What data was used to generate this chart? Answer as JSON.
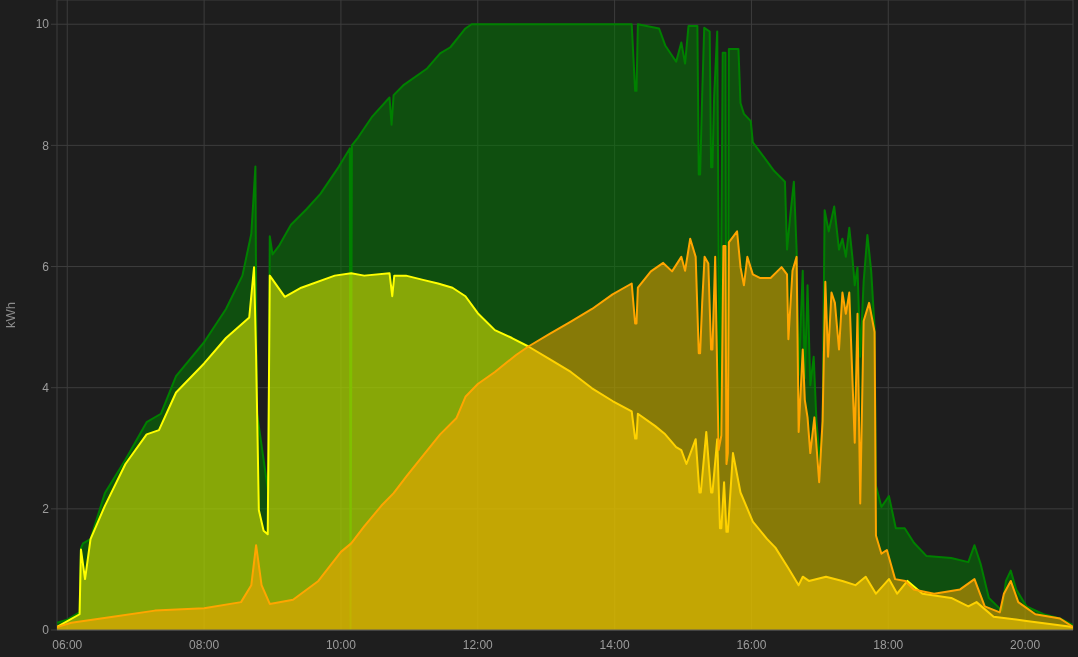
{
  "chart_data": {
    "type": "area",
    "ylabel": "kWh",
    "xlim": [
      5.85,
      20.7
    ],
    "xticks": [
      {
        "value": 6,
        "label": "06:00"
      },
      {
        "value": 8,
        "label": "08:00"
      },
      {
        "value": 10,
        "label": "10:00"
      },
      {
        "value": 12,
        "label": "12:00"
      },
      {
        "value": 14,
        "label": "14:00"
      },
      {
        "value": 16,
        "label": "16:00"
      },
      {
        "value": 18,
        "label": "18:00"
      },
      {
        "value": 20,
        "label": "20:00"
      }
    ],
    "ylim": [
      0,
      10.4
    ],
    "yticks": [
      0,
      2,
      4,
      6,
      8,
      10
    ],
    "grid": true,
    "series": [
      {
        "color": "#008000",
        "x": [
          5.85,
          6.0,
          6.18,
          6.2,
          6.23,
          6.34,
          6.55,
          6.85,
          7.16,
          7.37,
          7.59,
          8.0,
          8.32,
          8.56,
          8.69,
          8.75,
          8.77,
          8.94,
          8.96,
          9.0,
          9.1,
          9.27,
          9.5,
          9.7,
          9.97,
          10.13,
          10.14,
          10.16,
          10.25,
          10.46,
          10.71,
          10.74,
          10.77,
          10.92,
          11.26,
          11.45,
          11.6,
          11.82,
          11.91,
          14.25,
          14.3,
          14.32,
          14.34,
          14.65,
          14.74,
          14.9,
          14.975,
          15.03,
          15.08,
          15.21,
          15.23,
          15.25,
          15.28,
          15.31,
          15.39,
          15.41,
          15.43,
          15.455,
          15.5,
          15.52,
          15.54,
          15.56,
          15.58,
          15.62,
          15.635,
          15.655,
          15.67,
          15.81,
          15.84,
          15.89,
          15.99,
          16.02,
          16.18,
          16.33,
          16.49,
          16.52,
          16.57,
          16.62,
          16.66,
          16.69,
          16.75,
          16.78,
          16.82,
          16.86,
          16.91,
          16.95,
          17.0,
          17.04,
          17.07,
          17.13,
          17.21,
          17.28,
          17.33,
          17.38,
          17.43,
          17.475,
          17.51,
          17.55,
          17.59,
          17.64,
          17.695,
          17.75,
          17.8,
          17.82,
          17.9,
          18.01,
          18.11,
          18.24,
          18.375,
          18.56,
          18.92,
          19.17,
          19.26,
          19.35,
          19.47,
          19.66,
          19.72,
          19.79,
          19.87,
          20.02,
          20.27,
          20.51,
          20.7
        ],
        "values": [
          0.12,
          0.17,
          0.29,
          1.35,
          1.43,
          1.5,
          2.26,
          2.81,
          3.43,
          3.57,
          4.19,
          4.75,
          5.3,
          5.85,
          6.54,
          7.65,
          3.6,
          2.26,
          6.5,
          6.2,
          6.35,
          6.69,
          6.95,
          7.2,
          7.65,
          7.95,
          0,
          8.0,
          8.13,
          8.48,
          8.79,
          8.34,
          8.83,
          9.0,
          9.27,
          9.52,
          9.62,
          9.93,
          10.0,
          10.0,
          8.9,
          8.9,
          10.0,
          9.93,
          9.65,
          9.38,
          9.7,
          9.35,
          9.97,
          9.97,
          7.52,
          7.52,
          8.82,
          9.94,
          9.88,
          7.64,
          7.64,
          8.82,
          9.88,
          6.28,
          3.2,
          6.28,
          9.53,
          9.53,
          2.8,
          2.8,
          9.59,
          9.59,
          8.7,
          8.52,
          8.4,
          8.05,
          7.81,
          7.58,
          7.4,
          6.28,
          6.87,
          7.4,
          6.28,
          4.21,
          5.93,
          4.16,
          5.69,
          4.04,
          4.51,
          3.45,
          2.8,
          3.45,
          6.93,
          6.58,
          6.99,
          6.28,
          6.46,
          6.16,
          6.64,
          6.16,
          5.69,
          5.99,
          4.51,
          5.75,
          6.52,
          5.93,
          4.98,
          2.38,
          2.03,
          2.21,
          1.68,
          1.68,
          1.44,
          1.22,
          1.19,
          1.12,
          1.4,
          1.09,
          0.53,
          0.32,
          0.81,
          0.98,
          0.67,
          0.39,
          0.26,
          0.19,
          0.08
        ]
      },
      {
        "color": "#ffff00",
        "x": [
          5.85,
          6.18,
          6.2,
          6.26,
          6.34,
          6.55,
          6.85,
          7.16,
          7.34,
          7.59,
          8.0,
          8.32,
          8.66,
          8.73,
          8.76,
          8.8,
          8.87,
          8.93,
          8.96,
          9.18,
          9.42,
          9.91,
          10.15,
          10.34,
          10.71,
          10.75,
          10.78,
          10.95,
          11.2,
          11.42,
          11.63,
          11.82,
          12.0,
          12.25,
          12.5,
          12.74,
          13.05,
          13.36,
          13.67,
          13.97,
          14.25,
          14.3,
          14.32,
          14.34,
          14.59,
          14.74,
          14.9,
          14.975,
          15.05,
          15.185,
          15.24,
          15.26,
          15.34,
          15.41,
          15.43,
          15.5,
          15.54,
          15.56,
          15.6,
          15.635,
          15.655,
          15.73,
          15.84,
          16.02,
          16.23,
          16.35,
          16.54,
          16.69,
          16.75,
          16.84,
          17.09,
          17.33,
          17.52,
          17.67,
          17.82,
          18.01,
          18.13,
          18.28,
          18.5,
          18.92,
          19.17,
          19.29,
          19.54,
          20.02,
          20.7
        ],
        "values": [
          0.05,
          0.26,
          1.33,
          0.84,
          1.5,
          2.05,
          2.74,
          3.23,
          3.3,
          3.92,
          4.4,
          4.82,
          5.16,
          5.99,
          4.54,
          1.98,
          1.64,
          1.58,
          5.85,
          5.5,
          5.65,
          5.85,
          5.89,
          5.85,
          5.89,
          5.51,
          5.85,
          5.85,
          5.78,
          5.72,
          5.65,
          5.51,
          5.23,
          4.95,
          4.82,
          4.68,
          4.47,
          4.26,
          3.99,
          3.78,
          3.61,
          3.16,
          3.16,
          3.57,
          3.37,
          3.23,
          3.02,
          2.97,
          2.74,
          3.15,
          2.27,
          2.27,
          3.27,
          2.27,
          2.27,
          3.15,
          1.68,
          1.68,
          2.44,
          1.62,
          1.62,
          2.92,
          2.27,
          1.79,
          1.5,
          1.36,
          1.02,
          0.74,
          0.88,
          0.81,
          0.88,
          0.81,
          0.74,
          0.88,
          0.6,
          0.84,
          0.6,
          0.81,
          0.6,
          0.53,
          0.39,
          0.46,
          0.22,
          0.15,
          0.05
        ]
      },
      {
        "color": "#ffa500",
        "x": [
          5.85,
          6.06,
          6.67,
          7.28,
          8.0,
          8.54,
          8.69,
          8.76,
          8.84,
          8.96,
          9.3,
          9.67,
          10.0,
          10.15,
          10.34,
          10.59,
          10.77,
          10.96,
          11.2,
          11.45,
          11.69,
          11.82,
          12.0,
          12.25,
          12.56,
          12.74,
          13.05,
          13.36,
          13.67,
          13.97,
          14.25,
          14.3,
          14.32,
          14.34,
          14.53,
          14.71,
          14.84,
          14.975,
          15.03,
          15.105,
          15.185,
          15.23,
          15.25,
          15.28,
          15.315,
          15.37,
          15.41,
          15.43,
          15.47,
          15.52,
          15.56,
          15.59,
          15.62,
          15.635,
          15.655,
          15.67,
          15.79,
          15.84,
          15.89,
          15.94,
          16.02,
          16.13,
          16.28,
          16.44,
          16.52,
          16.54,
          16.6,
          16.66,
          16.69,
          16.75,
          16.78,
          16.82,
          16.86,
          16.92,
          16.99,
          17.04,
          17.08,
          17.12,
          17.17,
          17.22,
          17.28,
          17.33,
          17.38,
          17.43,
          17.51,
          17.55,
          17.59,
          17.64,
          17.72,
          17.8,
          17.82,
          17.9,
          17.98,
          18.1,
          18.25,
          18.37,
          18.67,
          19.05,
          19.26,
          19.41,
          19.63,
          19.69,
          19.79,
          19.9,
          20.15,
          20.51,
          20.7
        ],
        "values": [
          0.05,
          0.12,
          0.22,
          0.32,
          0.36,
          0.46,
          0.74,
          1.4,
          0.74,
          0.43,
          0.5,
          0.81,
          1.29,
          1.43,
          1.71,
          2.05,
          2.26,
          2.54,
          2.88,
          3.23,
          3.5,
          3.85,
          4.06,
          4.26,
          4.54,
          4.68,
          4.89,
          5.09,
          5.3,
          5.54,
          5.72,
          5.06,
          5.06,
          5.65,
          5.92,
          6.06,
          5.92,
          6.16,
          5.93,
          6.46,
          6.16,
          4.57,
          4.57,
          5.4,
          6.16,
          6.05,
          4.63,
          4.63,
          6.16,
          2.97,
          3.21,
          6.34,
          6.34,
          2.74,
          2.92,
          6.4,
          6.58,
          5.99,
          5.69,
          6.16,
          5.87,
          5.81,
          5.81,
          5.99,
          5.87,
          4.8,
          5.93,
          6.16,
          3.27,
          4.63,
          3.8,
          3.51,
          2.92,
          3.51,
          2.44,
          3.45,
          5.75,
          4.51,
          5.57,
          5.4,
          4.63,
          5.57,
          5.22,
          5.57,
          3.09,
          5.22,
          2.09,
          5.1,
          5.4,
          4.92,
          1.56,
          1.26,
          1.32,
          0.84,
          0.81,
          0.67,
          0.6,
          0.67,
          0.84,
          0.39,
          0.29,
          0.6,
          0.81,
          0.46,
          0.26,
          0.19,
          0.05
        ]
      }
    ]
  }
}
